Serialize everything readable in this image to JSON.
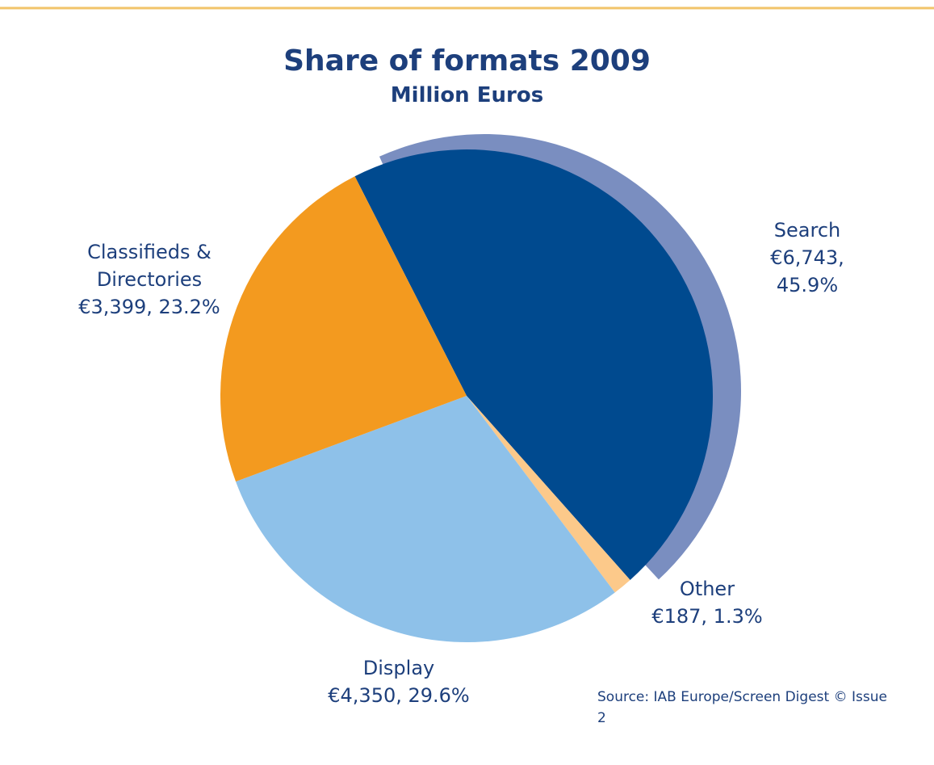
{
  "chart_data": {
    "type": "pie",
    "title": "Share of formats 2009",
    "subtitle": "Million Euros",
    "categories": [
      "Search",
      "Other",
      "Display",
      "Classifieds & Directories"
    ],
    "values": [
      6743,
      187,
      4350,
      3399
    ],
    "value_labels": [
      "€6,743, 45.9%",
      "€187, 1.3%",
      "€4,350, 29.6%",
      "€3,399, 23.2%"
    ],
    "colors": [
      "#004a8f",
      "#fcc98a",
      "#8ec1e9",
      "#f39a1f"
    ],
    "source": "Source: IAB Europe/Screen Digest © Issue 2"
  }
}
